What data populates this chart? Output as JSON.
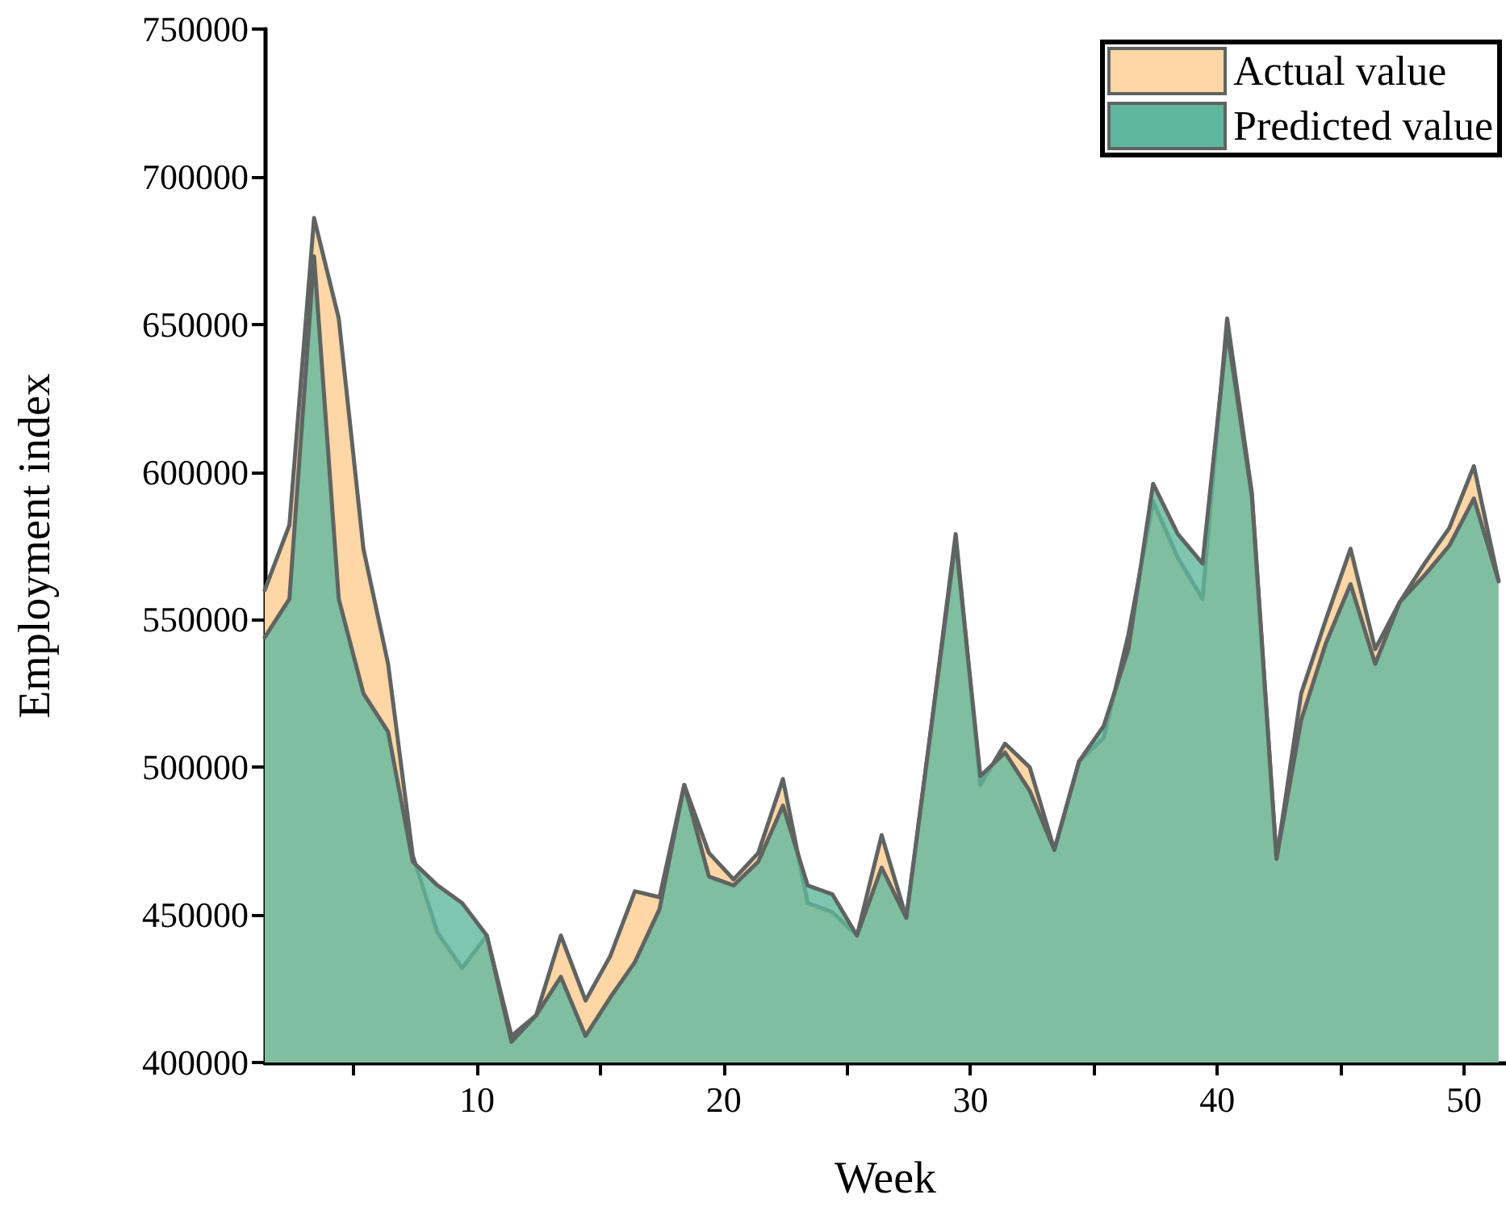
{
  "chart_data": {
    "type": "area",
    "xlabel": "Week",
    "ylabel": "Employment index",
    "x": [
      1.4,
      2.4,
      3.4,
      4.4,
      5.4,
      6.4,
      7.4,
      8.4,
      9.4,
      10.4,
      11.4,
      12.4,
      13.4,
      14.4,
      15.4,
      16.4,
      17.4,
      18.4,
      19.4,
      20.4,
      21.4,
      22.4,
      23.4,
      24.4,
      25.4,
      26.4,
      27.4,
      28.4,
      29.4,
      30.4,
      31.4,
      32.4,
      33.4,
      34.4,
      35.4,
      36.4,
      37.4,
      38.4,
      39.4,
      40.4,
      41.4,
      42.4,
      43.4,
      44.4,
      45.4,
      46.4,
      47.4,
      48.4,
      49.4,
      50.4,
      51.4
    ],
    "series": [
      {
        "name": "Actual value",
        "color": "#ffd6a5",
        "values": [
          560000,
          582000,
          686000,
          652000,
          574000,
          535000,
          470000,
          444000,
          432000,
          443000,
          409000,
          416000,
          443000,
          421000,
          436000,
          458000,
          456000,
          494000,
          471000,
          462000,
          471000,
          496000,
          454000,
          451000,
          443000,
          477000,
          449000,
          513000,
          579000,
          494000,
          508000,
          500000,
          472000,
          502000,
          510000,
          545000,
          590000,
          571000,
          557000,
          652000,
          593000,
          469000,
          525000,
          550000,
          574000,
          540000,
          556000,
          569000,
          581000,
          602000,
          563000
        ]
      },
      {
        "name": "Predicted value",
        "color": "#5fb89e",
        "values": [
          544000,
          557000,
          673000,
          557000,
          525000,
          512000,
          468000,
          460000,
          454000,
          443000,
          407000,
          416000,
          429000,
          409000,
          422000,
          434000,
          452000,
          494000,
          463000,
          460000,
          468000,
          487000,
          460000,
          457000,
          443000,
          466000,
          449000,
          513000,
          577000,
          497000,
          505000,
          492000,
          472000,
          502000,
          514000,
          540000,
          596000,
          579000,
          569000,
          648000,
          592000,
          469000,
          516000,
          542000,
          562000,
          535000,
          556000,
          565000,
          575000,
          591000,
          563000
        ]
      }
    ],
    "xlim": [
      1.4,
      51.7
    ],
    "ylim": [
      400000,
      750000
    ],
    "xticks": [
      {
        "value": 5,
        "label": null
      },
      10,
      {
        "value": 15,
        "label": null
      },
      20,
      {
        "value": 25,
        "label": null
      },
      30,
      {
        "value": 35,
        "label": null
      },
      40,
      {
        "value": 45,
        "label": null
      },
      50
    ],
    "yticks": [
      400000,
      450000,
      500000,
      550000,
      600000,
      650000,
      700000,
      750000
    ],
    "grid": false,
    "legend": "top right"
  }
}
